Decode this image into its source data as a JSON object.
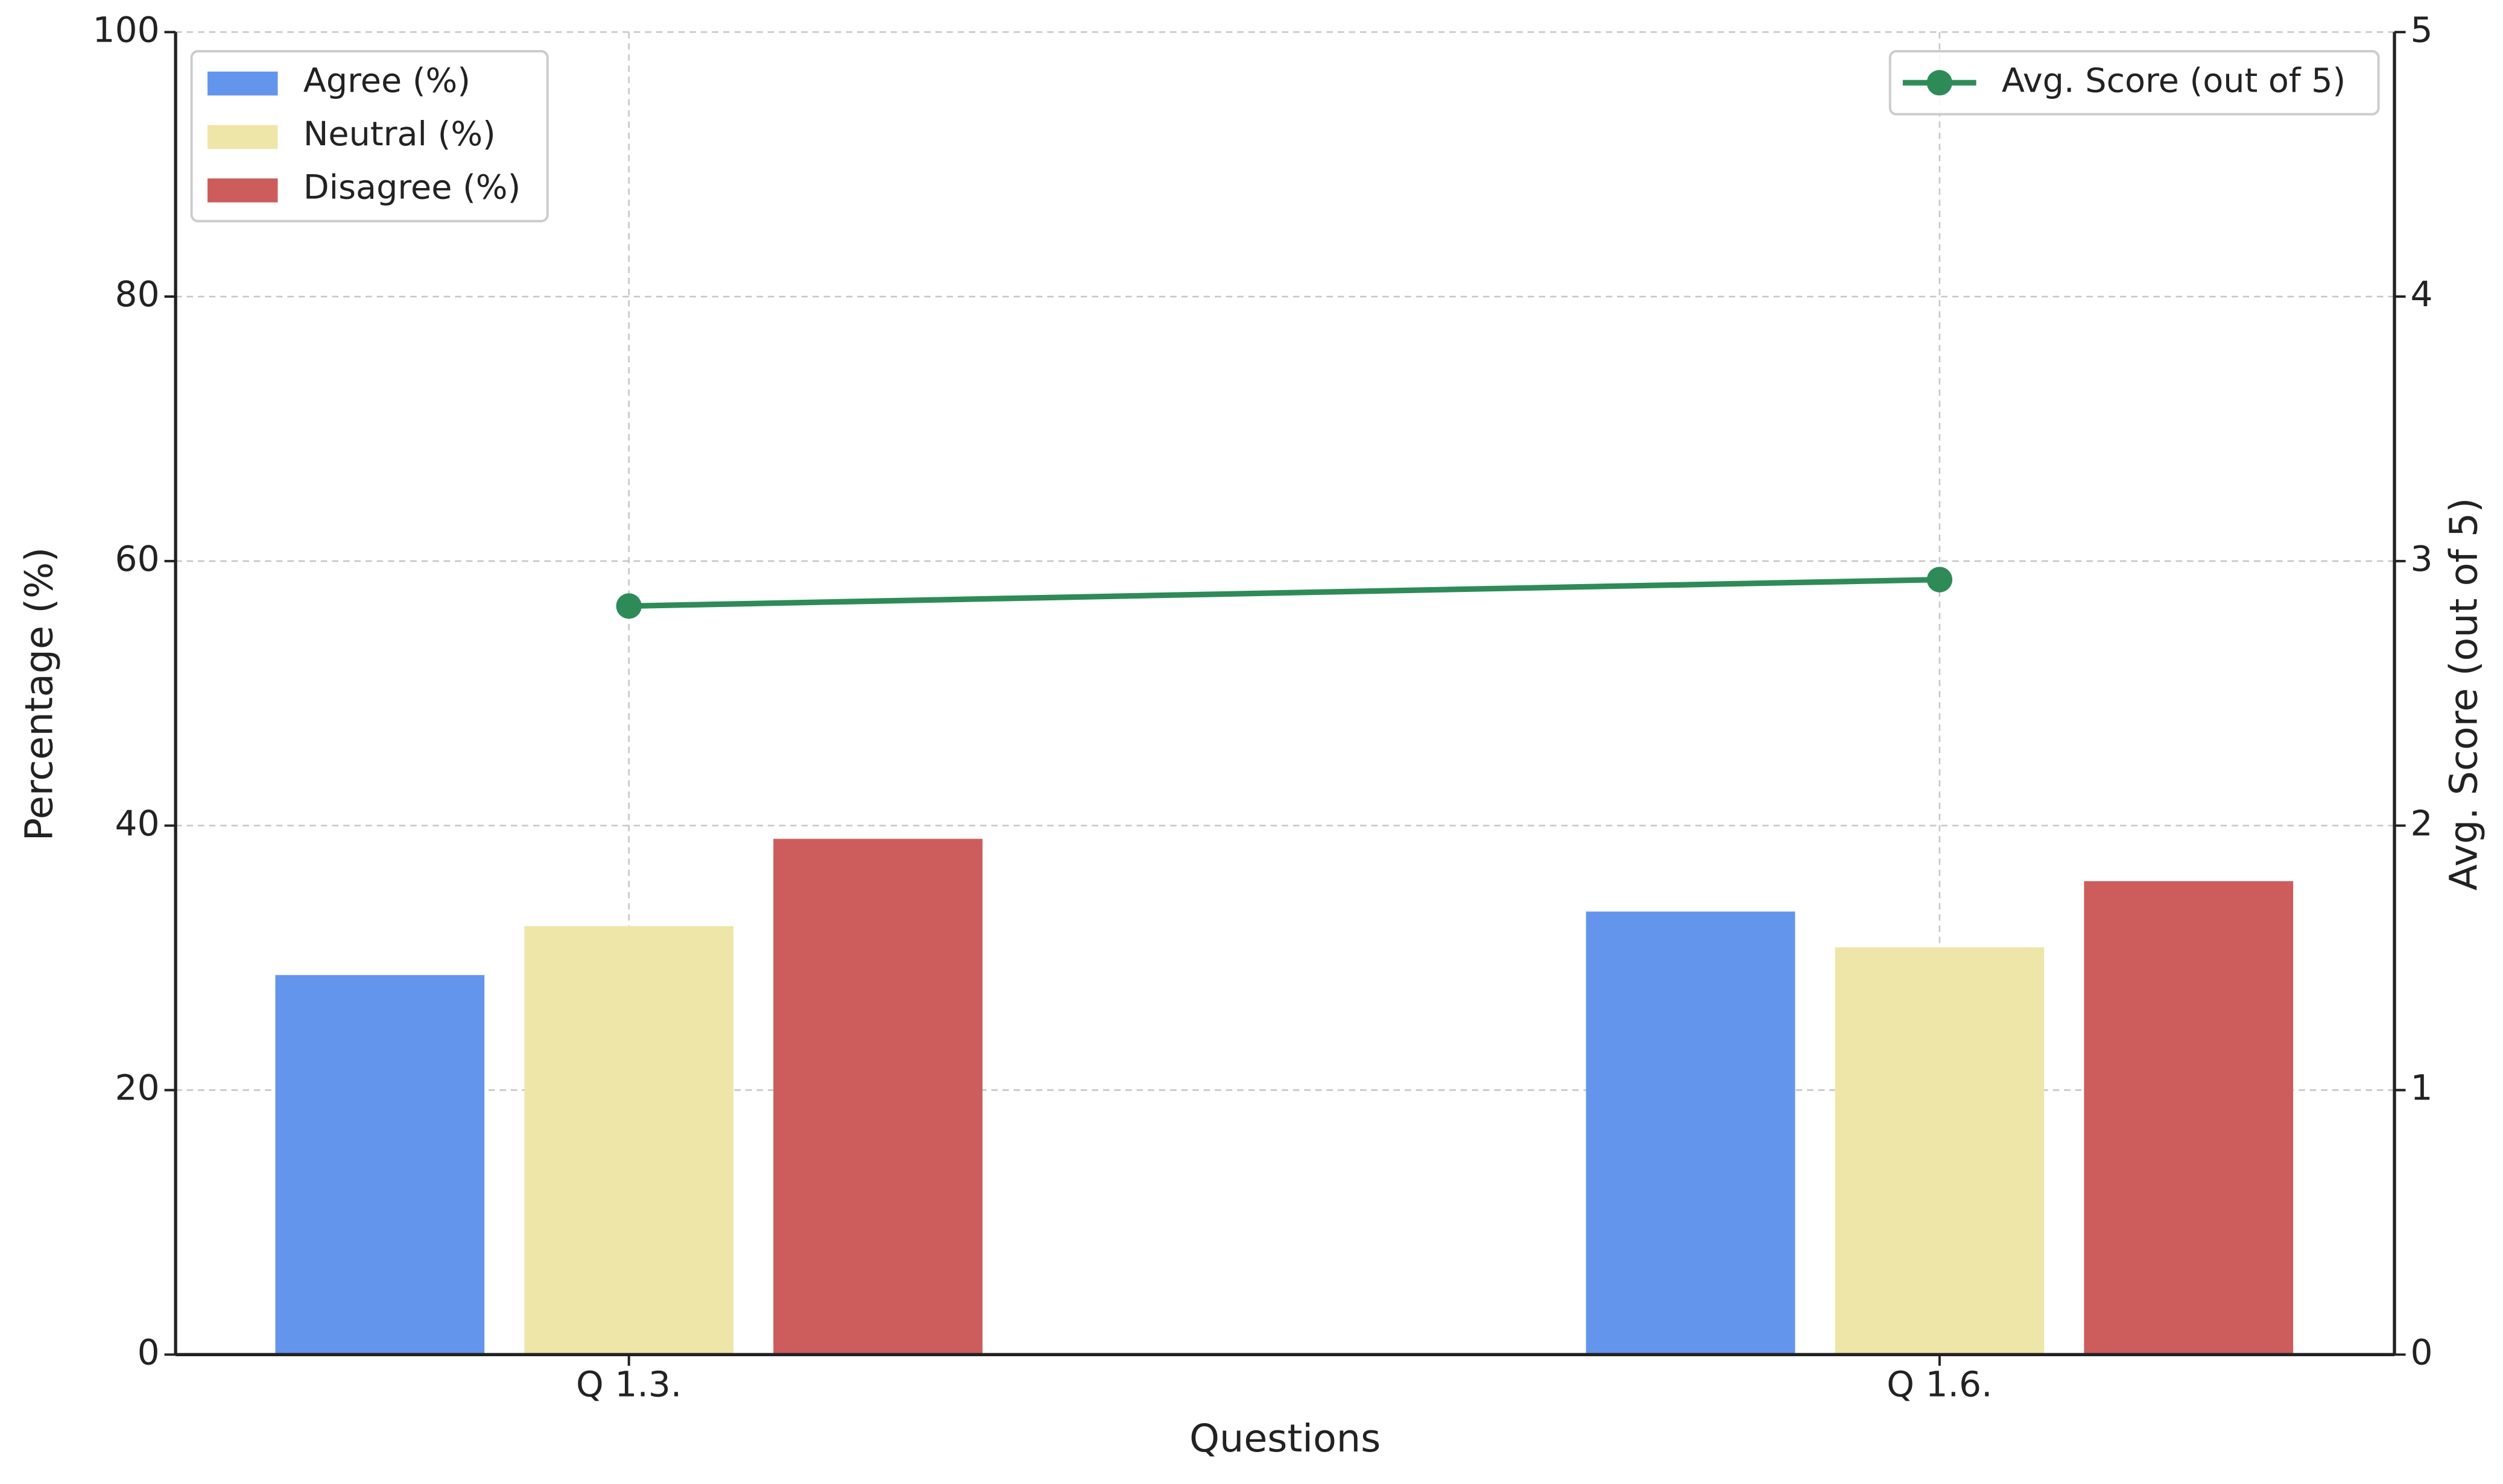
{
  "chart_data": {
    "type": "bar",
    "xlabel": "Questions",
    "ylabel": "Percentage (%)",
    "y2label": "Avg. Score (out of 5)",
    "categories": [
      "Q 1.3.",
      "Q 1.6."
    ],
    "series": [
      {
        "name": "Agree (%)",
        "type": "bar",
        "color": "#6495ED",
        "values": [
          28.7,
          33.5
        ]
      },
      {
        "name": "Neutral (%)",
        "type": "bar",
        "color": "#EEE6A8",
        "values": [
          32.4,
          30.8
        ]
      },
      {
        "name": "Disagree (%)",
        "type": "bar",
        "color": "#CD5C5C",
        "values": [
          39.0,
          35.8
        ]
      },
      {
        "name": "Avg. Score (out of 5)",
        "type": "line",
        "axis": "y2",
        "color": "#2E8B57",
        "values": [
          2.83,
          2.93
        ]
      }
    ],
    "ylim": [
      0,
      100
    ],
    "yticks": [
      0,
      20,
      40,
      60,
      80,
      100
    ],
    "y2lim": [
      0,
      5
    ],
    "y2ticks": [
      0,
      1,
      2,
      3,
      4,
      5
    ],
    "grid": true,
    "legend": "upper left",
    "legend2": "upper right"
  }
}
